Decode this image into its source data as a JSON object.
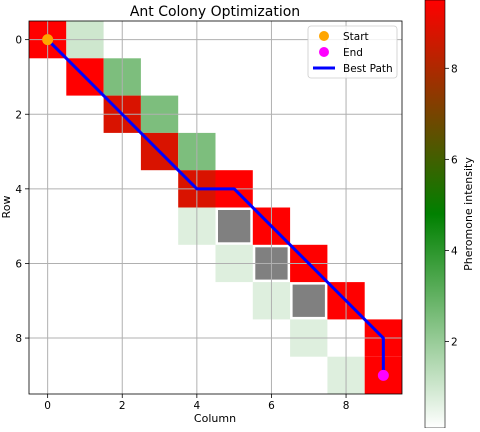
{
  "chart_data": {
    "type": "heatmap",
    "title": "Ant Colony Optimization",
    "xlabel": "Column",
    "ylabel": "Row",
    "x_ticks": [
      0,
      2,
      4,
      6,
      8
    ],
    "y_ticks": [
      0,
      2,
      4,
      6,
      8
    ],
    "grid_size": 10,
    "grid": true,
    "colorbar": {
      "label": "Pheromone intensity",
      "range": [
        0.1,
        9.5
      ],
      "ticks": [
        2,
        4,
        6,
        8
      ],
      "colors": [
        "#ffffff",
        "#008000",
        "#ff0000"
      ]
    },
    "cells": [
      {
        "row": 0,
        "col": 0,
        "value": 9.5
      },
      {
        "row": 0,
        "col": 1,
        "value": 1.0
      },
      {
        "row": 1,
        "col": 1,
        "value": 9.5
      },
      {
        "row": 1,
        "col": 2,
        "value": 2.5
      },
      {
        "row": 2,
        "col": 2,
        "value": 8.8
      },
      {
        "row": 2,
        "col": 3,
        "value": 2.5
      },
      {
        "row": 3,
        "col": 3,
        "value": 8.8
      },
      {
        "row": 3,
        "col": 4,
        "value": 2.5
      },
      {
        "row": 4,
        "col": 4,
        "value": 8.8
      },
      {
        "row": 4,
        "col": 5,
        "value": 9.5
      },
      {
        "row": 5,
        "col": 4,
        "value": 0.7
      },
      {
        "row": 5,
        "col": 6,
        "value": 9.5
      },
      {
        "row": 6,
        "col": 5,
        "value": 0.7
      },
      {
        "row": 6,
        "col": 7,
        "value": 9.5
      },
      {
        "row": 7,
        "col": 6,
        "value": 0.7
      },
      {
        "row": 7,
        "col": 8,
        "value": 9.5
      },
      {
        "row": 8,
        "col": 7,
        "value": 0.7
      },
      {
        "row": 8,
        "col": 9,
        "value": 9.5
      },
      {
        "row": 9,
        "col": 8,
        "value": 0.7
      },
      {
        "row": 9,
        "col": 9,
        "value": 9.5
      }
    ],
    "obstacles": [
      {
        "row": 5,
        "col": 5
      },
      {
        "row": 6,
        "col": 6
      },
      {
        "row": 7,
        "col": 7
      }
    ],
    "obstacle_color": "#808080",
    "best_path": {
      "name": "Best Path",
      "color": "#0000ff",
      "points": [
        [
          0,
          0
        ],
        [
          1,
          1
        ],
        [
          2,
          2
        ],
        [
          3,
          3
        ],
        [
          4,
          4
        ],
        [
          4,
          5
        ],
        [
          5,
          6
        ],
        [
          6,
          7
        ],
        [
          7,
          8
        ],
        [
          8,
          9
        ],
        [
          9,
          9
        ]
      ]
    },
    "start": {
      "name": "Start",
      "row": 0,
      "col": 0,
      "color": "#ffa500"
    },
    "end": {
      "name": "End",
      "row": 9,
      "col": 9,
      "color": "#ff00ff"
    },
    "legend_position": "upper-right",
    "legend": [
      "Start",
      "End",
      "Best Path"
    ]
  }
}
